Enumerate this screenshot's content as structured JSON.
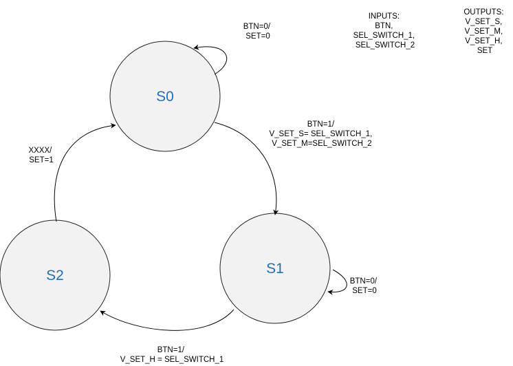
{
  "states": [
    {
      "id": "s0",
      "label": "S0"
    },
    {
      "id": "s1",
      "label": "S1"
    },
    {
      "id": "s2",
      "label": "S2"
    }
  ],
  "inputs": [
    "INPUTS:",
    "BTN,",
    "SEL_SWITCH_1,",
    "SEL_SWITCH_2"
  ],
  "outputs": [
    "OUTPUTS:",
    "V_SET_S,",
    "V_SET_M,",
    "V_SET_H,",
    "SET"
  ],
  "transitions": {
    "s0_self": [
      "BTN=0/",
      "SET=0"
    ],
    "s0_to_s1": [
      "BTN=1/",
      "V_SET_S= SEL_SWITCH_1,",
      "V_SET_M=SEL_SWITCH_2"
    ],
    "s1_self": [
      "BTN=0/",
      "SET=0"
    ],
    "s1_to_s2": [
      "BTN=1/",
      "V_SET_H = SEL_SWITCH_1"
    ],
    "s2_to_s0": [
      "XXXX/",
      "SET=1"
    ]
  }
}
